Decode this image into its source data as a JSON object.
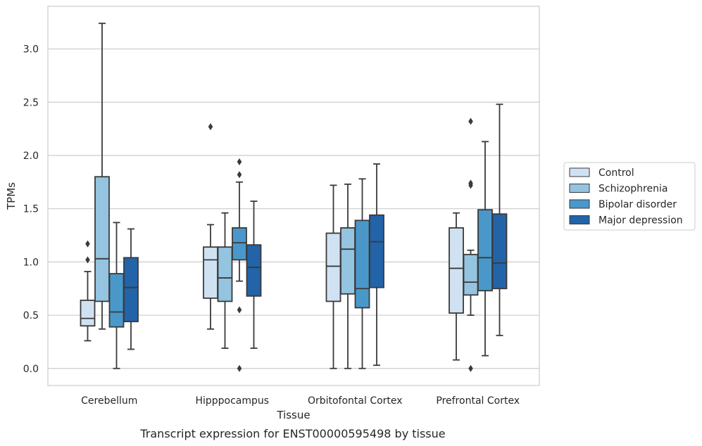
{
  "caption": "Transcript expression for ENST00000595498 by tissue",
  "chart_data": {
    "type": "box",
    "title": "",
    "xlabel": "Tissue",
    "ylabel": "TPMs",
    "ylim": [
      -0.16,
      3.4
    ],
    "yticks": [
      0.0,
      0.5,
      1.0,
      1.5,
      2.0,
      2.5,
      3.0
    ],
    "ytick_labels": [
      "0.0",
      "0.5",
      "1.0",
      "1.5",
      "2.0",
      "2.5",
      "3.0"
    ],
    "grid": "horizontal",
    "legend_position": "right",
    "categories": [
      "Cerebellum",
      "Hipppocampus",
      "Orbitofontal Cortex",
      "Prefrontal Cortex"
    ],
    "series": [
      {
        "name": "Control",
        "color": "#d0e2f2",
        "boxes": [
          {
            "whislo": 0.26,
            "q1": 0.4,
            "med": 0.47,
            "q3": 0.64,
            "whishi": 0.91,
            "fliers": [
              1.02,
              1.17
            ]
          },
          {
            "whislo": 0.37,
            "q1": 0.66,
            "med": 1.02,
            "q3": 1.14,
            "whishi": 1.35,
            "fliers": [
              2.27
            ]
          },
          {
            "whislo": 0.0,
            "q1": 0.63,
            "med": 0.96,
            "q3": 1.27,
            "whishi": 1.72,
            "fliers": []
          },
          {
            "whislo": 0.08,
            "q1": 0.52,
            "med": 0.94,
            "q3": 1.32,
            "whishi": 1.46,
            "fliers": []
          }
        ]
      },
      {
        "name": "Schizophrenia",
        "color": "#94c4df",
        "boxes": [
          {
            "whislo": 0.37,
            "q1": 0.63,
            "med": 1.03,
            "q3": 1.8,
            "whishi": 3.24,
            "fliers": []
          },
          {
            "whislo": 0.19,
            "q1": 0.63,
            "med": 0.85,
            "q3": 1.14,
            "whishi": 1.46,
            "fliers": []
          },
          {
            "whislo": 0.0,
            "q1": 0.7,
            "med": 1.12,
            "q3": 1.32,
            "whishi": 1.73,
            "fliers": []
          },
          {
            "whislo": 0.5,
            "q1": 0.69,
            "med": 0.81,
            "q3": 1.07,
            "whishi": 1.11,
            "fliers": [
              0.0,
              1.72,
              1.74,
              2.32
            ]
          }
        ]
      },
      {
        "name": "Bipolar disorder",
        "color": "#4a98c9",
        "boxes": [
          {
            "whislo": 0.0,
            "q1": 0.39,
            "med": 0.53,
            "q3": 0.89,
            "whishi": 1.37,
            "fliers": []
          },
          {
            "whislo": 0.82,
            "q1": 1.02,
            "med": 1.18,
            "q3": 1.32,
            "whishi": 1.75,
            "fliers": [
              0.0,
              0.55,
              1.82,
              1.94
            ]
          },
          {
            "whislo": 0.0,
            "q1": 0.57,
            "med": 0.75,
            "q3": 1.39,
            "whishi": 1.78,
            "fliers": []
          },
          {
            "whislo": 0.12,
            "q1": 0.73,
            "med": 1.04,
            "q3": 1.49,
            "whishi": 2.13,
            "fliers": []
          }
        ]
      },
      {
        "name": "Major depression",
        "color": "#2363a8",
        "boxes": [
          {
            "whislo": 0.18,
            "q1": 0.44,
            "med": 0.76,
            "q3": 1.04,
            "whishi": 1.31,
            "fliers": []
          },
          {
            "whislo": 0.19,
            "q1": 0.68,
            "med": 0.95,
            "q3": 1.16,
            "whishi": 1.57,
            "fliers": []
          },
          {
            "whislo": 0.03,
            "q1": 0.76,
            "med": 1.19,
            "q3": 1.44,
            "whishi": 1.92,
            "fliers": []
          },
          {
            "whislo": 0.31,
            "q1": 0.75,
            "med": 0.99,
            "q3": 1.45,
            "whishi": 2.48,
            "fliers": []
          }
        ]
      }
    ]
  }
}
